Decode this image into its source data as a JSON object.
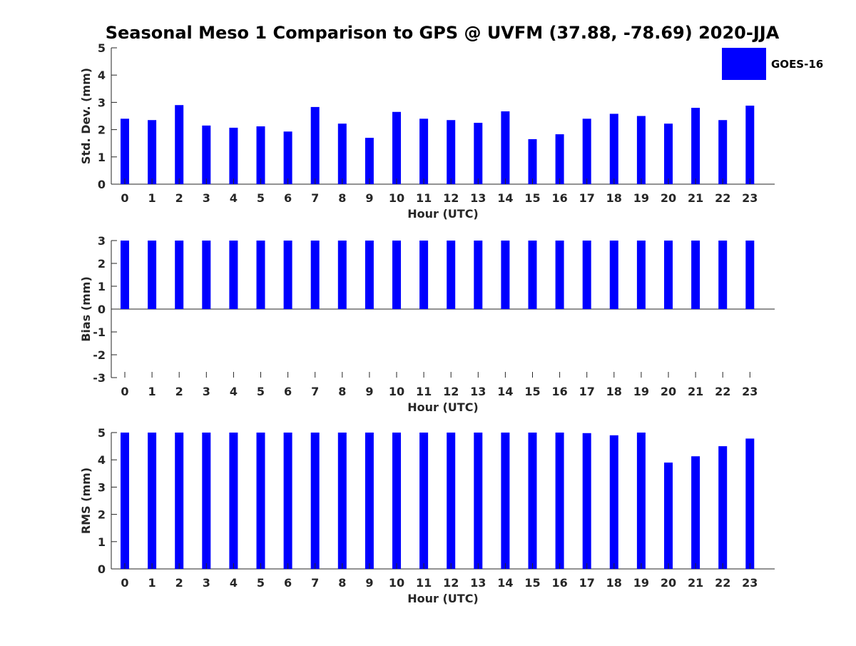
{
  "title": "Seasonal Meso 1 Comparison to GPS @ UVFM (37.88, -78.69) 2020-JJA",
  "legend": {
    "label": "GOES-16",
    "color": "#0000ff"
  },
  "chart_data": [
    {
      "type": "bar",
      "categories": [
        "0",
        "1",
        "2",
        "3",
        "4",
        "5",
        "6",
        "7",
        "8",
        "9",
        "10",
        "11",
        "12",
        "13",
        "14",
        "15",
        "16",
        "17",
        "18",
        "19",
        "20",
        "21",
        "22",
        "23"
      ],
      "series": [
        {
          "name": "GOES-16",
          "values": [
            2.4,
            2.35,
            2.9,
            2.15,
            2.07,
            2.12,
            1.93,
            2.83,
            2.22,
            1.7,
            2.65,
            2.4,
            2.35,
            2.25,
            2.67,
            1.65,
            1.83,
            2.4,
            2.58,
            2.5,
            2.22,
            2.8,
            2.35,
            2.88
          ]
        }
      ],
      "xlabel": "Hour (UTC)",
      "ylabel": "Std. Dev. (mm)",
      "ylim": [
        0,
        5
      ],
      "yticks": [
        "0",
        "1",
        "2",
        "3",
        "4",
        "5"
      ]
    },
    {
      "type": "bar",
      "categories": [
        "0",
        "1",
        "2",
        "3",
        "4",
        "5",
        "6",
        "7",
        "8",
        "9",
        "10",
        "11",
        "12",
        "13",
        "14",
        "15",
        "16",
        "17",
        "18",
        "19",
        "20",
        "21",
        "22",
        "23"
      ],
      "series": [
        {
          "name": "GOES-16",
          "values": [
            3,
            3,
            3,
            3,
            3,
            3,
            3,
            3,
            3,
            3,
            3,
            3,
            3,
            3,
            3,
            3,
            3,
            3,
            3,
            3,
            3,
            3,
            3,
            3
          ]
        }
      ],
      "xlabel": "Hour (UTC)",
      "ylabel": "Bias (mm)",
      "ylim": [
        -3,
        3
      ],
      "yticks": [
        "-3",
        "-2",
        "-1",
        "0",
        "1",
        "2",
        "3"
      ]
    },
    {
      "type": "bar",
      "categories": [
        "0",
        "1",
        "2",
        "3",
        "4",
        "5",
        "6",
        "7",
        "8",
        "9",
        "10",
        "11",
        "12",
        "13",
        "14",
        "15",
        "16",
        "17",
        "18",
        "19",
        "20",
        "21",
        "22",
        "23"
      ],
      "series": [
        {
          "name": "GOES-16",
          "values": [
            5,
            5,
            5,
            5,
            5,
            5,
            5,
            5,
            5,
            5,
            5,
            5,
            5,
            5,
            5,
            5,
            5,
            4.98,
            4.9,
            5,
            3.9,
            4.13,
            4.5,
            4.78
          ]
        }
      ],
      "xlabel": "Hour (UTC)",
      "ylabel": "RMS (mm)",
      "ylim": [
        0,
        5
      ],
      "yticks": [
        "0",
        "1",
        "2",
        "3",
        "4",
        "5"
      ]
    }
  ]
}
